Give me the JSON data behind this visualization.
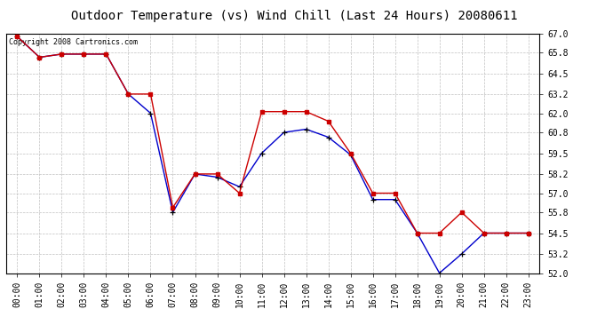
{
  "title": "Outdoor Temperature (vs) Wind Chill (Last 24 Hours) 20080611",
  "copyright_text": "Copyright 2008 Cartronics.com",
  "x_labels": [
    "00:00",
    "01:00",
    "02:00",
    "03:00",
    "04:00",
    "05:00",
    "06:00",
    "07:00",
    "08:00",
    "09:00",
    "10:00",
    "11:00",
    "12:00",
    "13:00",
    "14:00",
    "15:00",
    "16:00",
    "17:00",
    "18:00",
    "19:00",
    "20:00",
    "21:00",
    "22:00",
    "23:00"
  ],
  "temp_red": [
    66.8,
    65.5,
    65.7,
    65.7,
    65.7,
    63.2,
    63.2,
    56.1,
    58.2,
    58.2,
    57.0,
    62.1,
    62.1,
    62.1,
    61.5,
    59.5,
    57.0,
    57.0,
    54.5,
    54.5,
    55.8,
    54.5,
    54.5,
    54.5
  ],
  "temp_blue": [
    66.8,
    65.5,
    65.7,
    65.7,
    65.7,
    63.2,
    62.0,
    55.8,
    58.2,
    58.0,
    57.4,
    59.5,
    60.8,
    61.0,
    60.5,
    59.4,
    56.6,
    56.6,
    54.5,
    52.0,
    53.2,
    54.5,
    54.5,
    54.5
  ],
  "ylim_min": 52.0,
  "ylim_max": 67.0,
  "yticks": [
    52.0,
    53.2,
    54.5,
    55.8,
    57.0,
    58.2,
    59.5,
    60.8,
    62.0,
    63.2,
    64.5,
    65.8,
    67.0
  ],
  "bg_color": "#ffffff",
  "grid_color": "#c0c0c0",
  "red_color": "#cc0000",
  "blue_color": "#0000cc",
  "title_fontsize": 10,
  "copyright_fontsize": 6,
  "tick_fontsize": 7,
  "ytick_fontsize": 7
}
